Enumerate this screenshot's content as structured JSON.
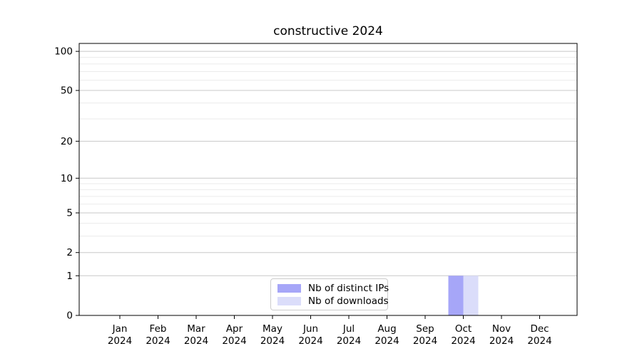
{
  "title": "constructive 2024",
  "chart_data": {
    "type": "bar",
    "title": "constructive 2024",
    "categories": [
      "Jan",
      "Feb",
      "Mar",
      "Apr",
      "May",
      "Jun",
      "Jul",
      "Aug",
      "Sep",
      "Oct",
      "Nov",
      "Dec"
    ],
    "category_year": "2024",
    "series": [
      {
        "name": "Nb of distinct IPs",
        "color": "#a6a6f8",
        "values": [
          0,
          0,
          0,
          0,
          0,
          0,
          0,
          0,
          0,
          1,
          0,
          0
        ]
      },
      {
        "name": "Nb of downloads",
        "color": "#dbddfa",
        "values": [
          0,
          0,
          0,
          0,
          0,
          0,
          0,
          0,
          0,
          1,
          0,
          0
        ]
      }
    ],
    "xlabel": "",
    "ylabel": "",
    "y_axis": {
      "scale": "log1p",
      "min": 0,
      "max": 115,
      "major_ticks": [
        0,
        1,
        2,
        5,
        10,
        20,
        50,
        100
      ],
      "minor_ticks": [
        3,
        4,
        6,
        7,
        8,
        9,
        30,
        40,
        60,
        70,
        80,
        90
      ]
    },
    "grid": {
      "major": true,
      "minor": true
    },
    "legend_position": "lower center"
  },
  "colors": {
    "background": "#ffffff",
    "axis": "#000000",
    "text": "#000000",
    "major_grid": "#c8c8c8",
    "minor_grid": "#ebebeb",
    "legend_border": "#cccccc"
  }
}
